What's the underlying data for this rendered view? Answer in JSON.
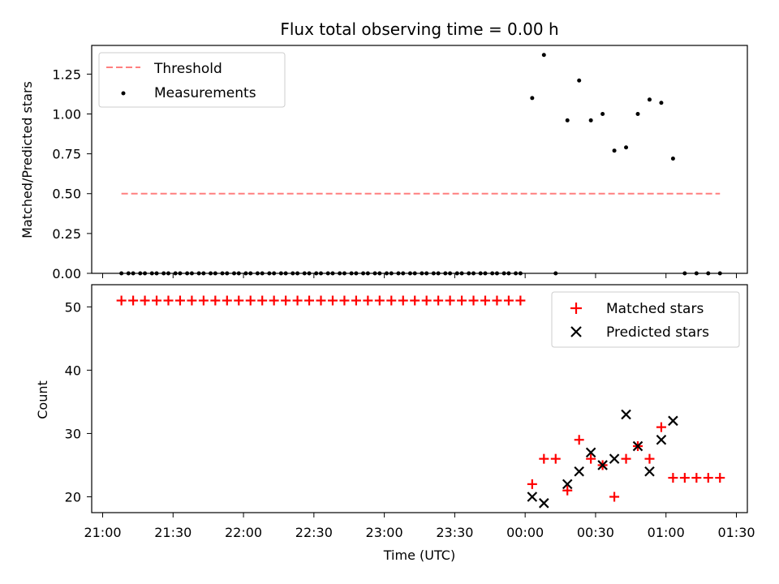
{
  "chart_data": [
    {
      "type": "scatter",
      "title": "Flux total observing time = 0.00 h",
      "xlabel": "",
      "ylabel": "Matched/Predicted stars",
      "ylim": [
        0,
        1.43
      ],
      "xlim": [
        "21:00",
        "01:30"
      ],
      "yticks": [
        0.0,
        0.25,
        0.5,
        0.75,
        1.0,
        1.25
      ],
      "ytick_labels": [
        "0.00",
        "0.25",
        "0.50",
        "0.75",
        "1.00",
        "1.25"
      ],
      "grid": false,
      "legend": "top-left",
      "series": [
        {
          "name": "Threshold",
          "kind": "line",
          "style": "dashed",
          "color": "#ff7f7f",
          "x": [
            "21:08",
            "01:23"
          ],
          "values": [
            0.5,
            0.5
          ]
        },
        {
          "name": "Measurements",
          "kind": "scatter",
          "color": "#000000",
          "x": [
            "21:08",
            "21:11",
            "21:13",
            "21:16",
            "21:18",
            "21:21",
            "21:23",
            "21:26",
            "21:28",
            "21:31",
            "21:33",
            "21:36",
            "21:38",
            "21:41",
            "21:43",
            "21:46",
            "21:48",
            "21:51",
            "21:53",
            "21:56",
            "21:58",
            "22:01",
            "22:03",
            "22:06",
            "22:08",
            "22:11",
            "22:13",
            "22:16",
            "22:18",
            "22:21",
            "22:23",
            "22:26",
            "22:28",
            "22:31",
            "22:33",
            "22:36",
            "22:38",
            "22:41",
            "22:43",
            "22:46",
            "22:48",
            "22:51",
            "22:53",
            "22:56",
            "22:58",
            "23:01",
            "23:03",
            "23:06",
            "23:08",
            "23:11",
            "23:13",
            "23:16",
            "23:18",
            "23:21",
            "23:23",
            "23:26",
            "23:28",
            "23:31",
            "23:33",
            "23:36",
            "23:38",
            "23:41",
            "23:43",
            "23:46",
            "23:48",
            "23:51",
            "23:53",
            "23:56",
            "23:58",
            "00:03",
            "00:08",
            "00:13",
            "00:18",
            "00:23",
            "00:28",
            "00:33",
            "00:38",
            "00:43",
            "00:48",
            "00:53",
            "00:58",
            "01:03",
            "01:08",
            "01:13",
            "01:18",
            "01:23"
          ],
          "values": [
            0,
            0,
            0,
            0,
            0,
            0,
            0,
            0,
            0,
            0,
            0,
            0,
            0,
            0,
            0,
            0,
            0,
            0,
            0,
            0,
            0,
            0,
            0,
            0,
            0,
            0,
            0,
            0,
            0,
            0,
            0,
            0,
            0,
            0,
            0,
            0,
            0,
            0,
            0,
            0,
            0,
            0,
            0,
            0,
            0,
            0,
            0,
            0,
            0,
            0,
            0,
            0,
            0,
            0,
            0,
            0,
            0,
            0,
            0,
            0,
            0,
            0,
            0,
            0,
            0,
            0,
            0,
            0,
            0,
            1.1,
            1.37,
            0,
            0.96,
            1.21,
            0.96,
            1.0,
            0.77,
            0.79,
            1.0,
            1.09,
            1.07,
            0.72,
            0,
            0,
            0,
            0
          ]
        }
      ]
    },
    {
      "type": "scatter",
      "title": "",
      "xlabel": "Time (UTC)",
      "ylabel": "Count",
      "ylim": [
        17.5,
        53.5
      ],
      "xlim": [
        "21:00",
        "01:30"
      ],
      "yticks": [
        20,
        30,
        40,
        50
      ],
      "ytick_labels": [
        "20",
        "30",
        "40",
        "50"
      ],
      "xticks": [
        "21:00",
        "21:30",
        "22:00",
        "22:30",
        "23:00",
        "23:30",
        "00:00",
        "00:30",
        "01:00",
        "01:30"
      ],
      "grid": false,
      "legend": "top-right",
      "series": [
        {
          "name": "Matched stars",
          "marker": "+",
          "color": "#ff0000",
          "x": [
            "21:08",
            "21:13",
            "21:18",
            "21:23",
            "21:28",
            "21:33",
            "21:38",
            "21:43",
            "21:48",
            "21:53",
            "21:58",
            "22:03",
            "22:08",
            "22:13",
            "22:18",
            "22:23",
            "22:28",
            "22:33",
            "22:38",
            "22:43",
            "22:48",
            "22:53",
            "22:58",
            "23:03",
            "23:08",
            "23:13",
            "23:18",
            "23:23",
            "23:28",
            "23:33",
            "23:38",
            "23:43",
            "23:48",
            "23:53",
            "23:58",
            "00:03",
            "00:08",
            "00:13",
            "00:18",
            "00:23",
            "00:28",
            "00:33",
            "00:38",
            "00:43",
            "00:48",
            "00:53",
            "00:58",
            "01:03",
            "01:08",
            "01:13",
            "01:18",
            "01:23"
          ],
          "values": [
            51,
            51,
            51,
            51,
            51,
            51,
            51,
            51,
            51,
            51,
            51,
            51,
            51,
            51,
            51,
            51,
            51,
            51,
            51,
            51,
            51,
            51,
            51,
            51,
            51,
            51,
            51,
            51,
            51,
            51,
            51,
            51,
            51,
            51,
            51,
            22,
            26,
            26,
            21,
            29,
            26,
            25,
            20,
            26,
            28,
            26,
            31,
            23,
            23,
            23,
            23,
            23
          ]
        },
        {
          "name": "Predicted stars",
          "marker": "x",
          "color": "#000000",
          "x": [
            "00:03",
            "00:08",
            "00:18",
            "00:23",
            "00:28",
            "00:33",
            "00:38",
            "00:43",
            "00:48",
            "00:53",
            "00:58",
            "01:03"
          ],
          "values": [
            20,
            19,
            22,
            24,
            27,
            25,
            26,
            33,
            28,
            24,
            29,
            32
          ]
        }
      ]
    }
  ]
}
